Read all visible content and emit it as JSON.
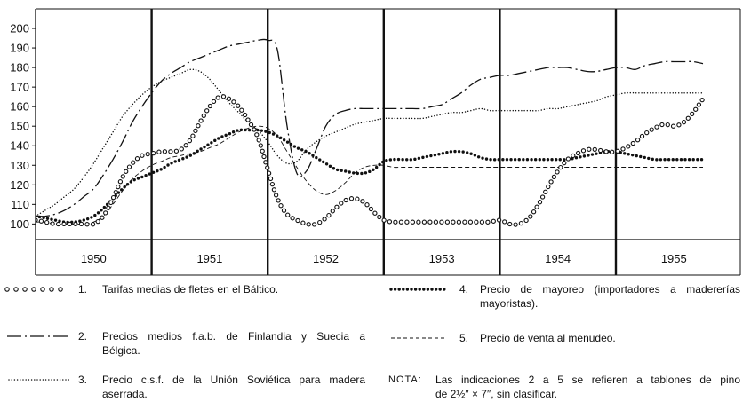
{
  "chart_data": {
    "type": "line",
    "x": [
      "1950-01",
      "1950-02",
      "1950-03",
      "1950-04",
      "1950-05",
      "1950-06",
      "1950-07",
      "1950-08",
      "1950-09",
      "1950-10",
      "1950-11",
      "1950-12",
      "1951-01",
      "1951-02",
      "1951-03",
      "1951-04",
      "1951-05",
      "1951-06",
      "1951-07",
      "1951-08",
      "1951-09",
      "1951-10",
      "1951-11",
      "1951-12",
      "1952-01",
      "1952-02",
      "1952-03",
      "1952-04",
      "1952-05",
      "1952-06",
      "1952-07",
      "1952-08",
      "1952-09",
      "1952-10",
      "1952-11",
      "1952-12",
      "1953-01",
      "1953-02",
      "1953-03",
      "1953-04",
      "1953-05",
      "1953-06",
      "1953-07",
      "1953-08",
      "1953-09",
      "1953-10",
      "1953-11",
      "1953-12",
      "1954-01",
      "1954-02",
      "1954-03",
      "1954-04",
      "1954-05",
      "1954-06",
      "1954-07",
      "1954-08",
      "1954-09",
      "1954-10",
      "1954-11",
      "1954-12",
      "1955-01",
      "1955-02",
      "1955-03",
      "1955-04",
      "1955-05",
      "1955-06",
      "1955-07",
      "1955-08",
      "1955-09",
      "1955-10"
    ],
    "xlim": [
      "1950-01",
      "1956-01"
    ],
    "x_tick_labels": [
      "1950",
      "1951",
      "1952",
      "1953",
      "1954",
      "1955"
    ],
    "ylim": [
      92,
      210
    ],
    "y_ticks": [
      100,
      110,
      120,
      130,
      140,
      150,
      160,
      170,
      180,
      190,
      200
    ],
    "grid": false,
    "legend_position": "below",
    "series": [
      {
        "number": "1.",
        "legend_lines": [
          "Tarifas medias de fletes en el Báltico."
        ],
        "values": [
          102,
          101,
          100,
          100,
          100,
          100,
          100,
          104,
          113,
          124,
          131,
          135,
          136,
          137,
          137,
          138,
          143,
          152,
          160,
          165,
          164,
          160,
          153,
          144,
          128,
          113,
          105,
          102,
          100,
          100,
          103,
          108,
          112,
          113,
          111,
          106,
          102,
          101,
          101,
          101,
          101,
          101,
          101,
          101,
          101,
          101,
          101,
          101,
          102,
          100,
          100,
          103,
          110,
          119,
          127,
          133,
          136,
          138,
          138,
          137,
          137,
          139,
          142,
          146,
          149,
          151,
          150,
          152,
          157,
          164
        ]
      },
      {
        "number": "2.",
        "legend_lines": [
          "Precios medios f.a.b. de Finlandia y Suecia a",
          "Bélgica."
        ],
        "values": [
          104,
          104,
          105,
          107,
          110,
          114,
          118,
          125,
          133,
          142,
          152,
          160,
          167,
          173,
          177,
          180,
          183,
          185,
          187,
          189,
          191,
          192,
          193,
          194,
          194,
          189,
          150,
          126,
          127,
          138,
          150,
          156,
          158,
          159,
          159,
          159,
          159,
          159,
          159,
          159,
          159,
          160,
          161,
          164,
          167,
          171,
          174,
          175,
          176,
          176,
          177,
          178,
          179,
          180,
          180,
          180,
          179,
          178,
          178,
          179,
          180,
          180,
          179,
          181,
          182,
          183,
          183,
          183,
          183,
          182
        ]
      },
      {
        "number": "3.",
        "legend_lines": [
          "Precio c.s.f. de la Unión Soviética para madera",
          "aserrada."
        ],
        "values": [
          104,
          107,
          110,
          114,
          118,
          124,
          131,
          139,
          147,
          155,
          161,
          166,
          170,
          173,
          175,
          177,
          179,
          178,
          174,
          168,
          162,
          157,
          152,
          148,
          142,
          135,
          131,
          132,
          138,
          142,
          145,
          147,
          149,
          151,
          152,
          153,
          154,
          154,
          154,
          154,
          154,
          155,
          156,
          157,
          157,
          158,
          159,
          158,
          158,
          158,
          158,
          158,
          158,
          159,
          159,
          160,
          161,
          162,
          163,
          165,
          166,
          167,
          167,
          167,
          167,
          167,
          167,
          167,
          167,
          167
        ]
      },
      {
        "number": "4.",
        "legend_lines": [
          "Precio de mayoreo (importadores a madererías",
          "mayoristas)."
        ],
        "values": [
          104,
          103,
          102,
          101,
          101,
          102,
          104,
          108,
          113,
          118,
          122,
          124,
          126,
          128,
          131,
          133,
          135,
          138,
          141,
          144,
          146,
          148,
          148,
          148,
          147,
          145,
          142,
          139,
          137,
          134,
          131,
          128,
          127,
          126,
          126,
          128,
          132,
          133,
          133,
          133,
          134,
          135,
          136,
          137,
          137,
          136,
          134,
          133,
          133,
          133,
          133,
          133,
          133,
          133,
          133,
          133,
          134,
          135,
          136,
          137,
          137,
          136,
          135,
          134,
          133,
          133,
          133,
          133,
          133,
          133
        ]
      },
      {
        "number": "5.",
        "legend_lines": [
          "Precio de venta al menudeo."
        ],
        "values": [
          101,
          101,
          100,
          100,
          100,
          100,
          101,
          104,
          110,
          117,
          123,
          127,
          130,
          132,
          134,
          135,
          136,
          137,
          139,
          141,
          144,
          147,
          149,
          150,
          149,
          145,
          137,
          129,
          122,
          117,
          115,
          117,
          121,
          126,
          129,
          130,
          130,
          129,
          129,
          129,
          129,
          129,
          129,
          129,
          129,
          129,
          129,
          129,
          129,
          129,
          129,
          129,
          129,
          129,
          129,
          129,
          129,
          129,
          129,
          129,
          129,
          129,
          129,
          129,
          129,
          129,
          129,
          129,
          129,
          129
        ]
      }
    ]
  },
  "note": {
    "label": "NOTA:",
    "lines": [
      "Las indicaciones 2 a 5 se refieren a tablones de pino",
      "de 2½″ × 7″, sin clasificar."
    ]
  }
}
